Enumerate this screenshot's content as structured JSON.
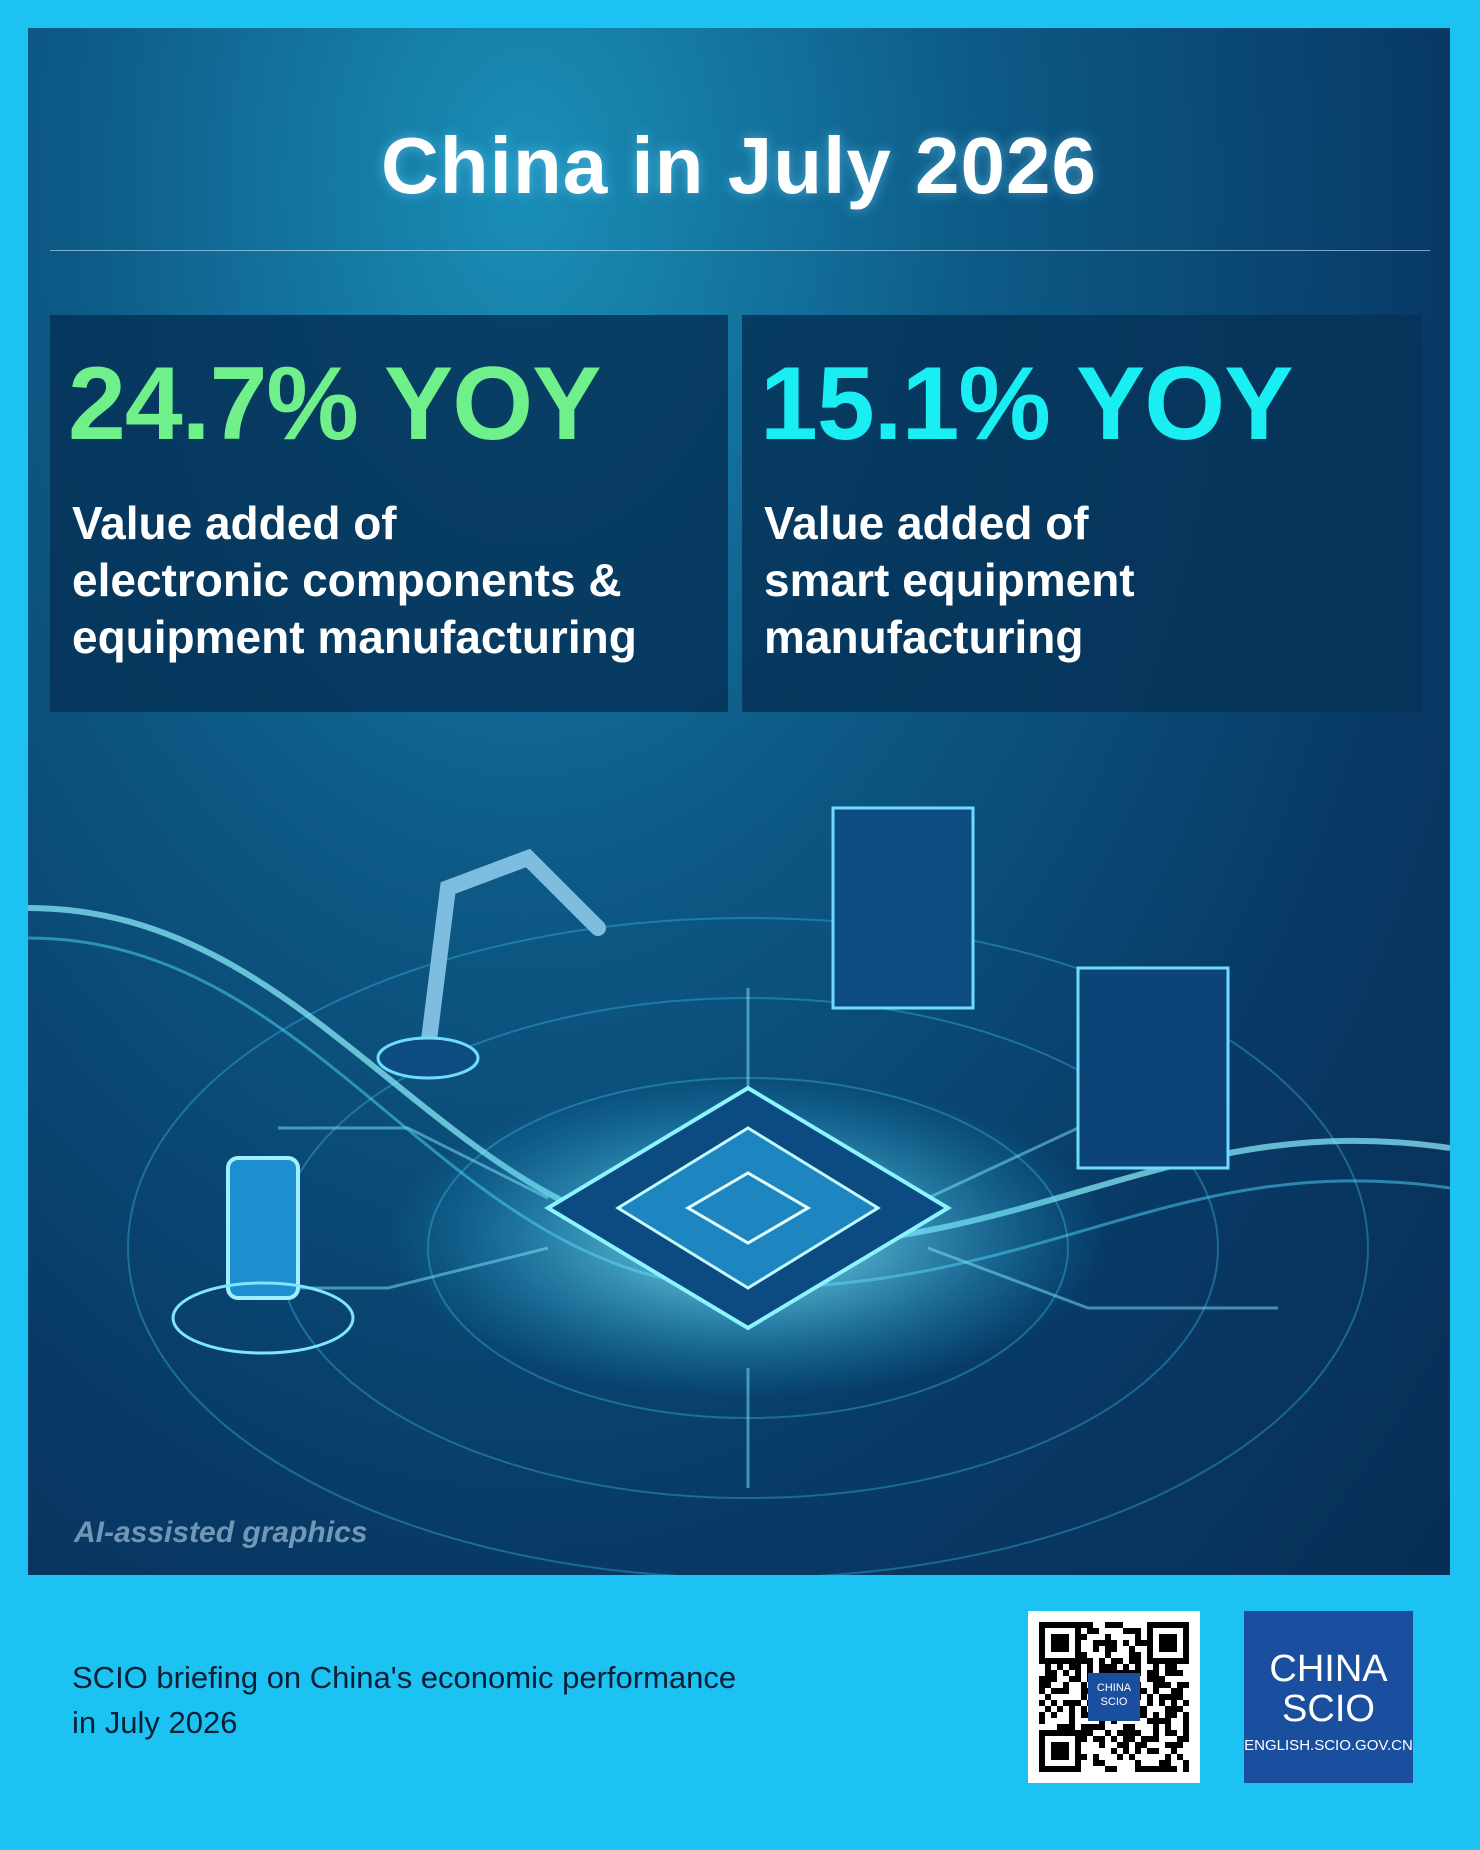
{
  "header": {
    "title": "China in July 2026"
  },
  "stats": [
    {
      "figure": "24.7% YOY",
      "label_lines": [
        "Value added of",
        "electronic components &",
        "equipment manufacturing"
      ]
    },
    {
      "figure": "15.1% YOY",
      "label_lines": [
        "Value added of",
        "smart equipment",
        "manufacturing"
      ]
    }
  ],
  "image_note": "AI-assisted graphics",
  "footer": {
    "lines": [
      "SCIO briefing on China's economic performance",
      "in July 2026"
    ]
  },
  "qr": {
    "lines": [
      "CHINA",
      "SCIO"
    ]
  },
  "logo": {
    "lines": [
      "CHINA",
      "SCIO"
    ],
    "url": "ENGLISH.SCIO.GOV.CN"
  }
}
